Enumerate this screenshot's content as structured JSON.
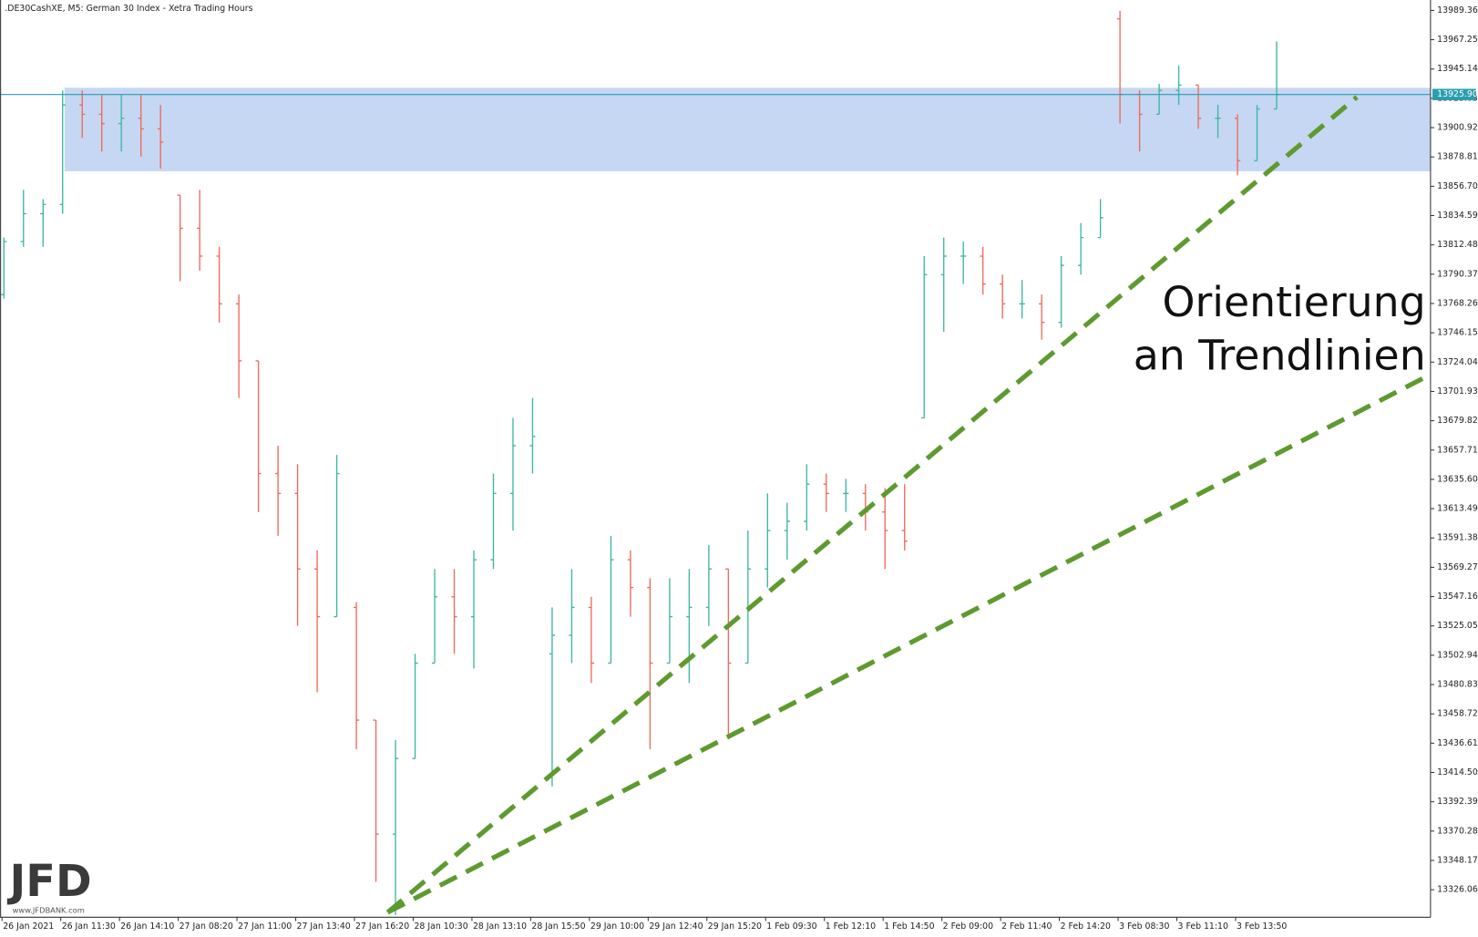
{
  "chart_data": {
    "type": "ohlc",
    "title": ".DE30CashXE, M5:  German 30 Index  - Xetra Trading Hours",
    "categories": [
      "26 Jan 2021",
      null,
      null,
      "26 Jan 11:30",
      null,
      null,
      "26 Jan 14:10",
      null,
      null,
      "27 Jan 08:20",
      null,
      null,
      "27 Jan 11:00",
      null,
      null,
      "27 Jan 13:40",
      null,
      null,
      "27 Jan 16:20",
      null,
      null,
      "28 Jan 10:30",
      null,
      null,
      "28 Jan 13:10",
      null,
      null,
      "28 Jan 15:50",
      null,
      null,
      "29 Jan 10:00",
      null,
      null,
      "29 Jan 12:40",
      null,
      null,
      "29 Jan 15:20",
      null,
      null,
      "1 Feb 09:30",
      null,
      null,
      "1 Feb 12:10",
      null,
      null,
      "1 Feb 14:50",
      null,
      null,
      "2 Feb 09:00",
      null,
      null,
      "2 Feb 11:40",
      null,
      null,
      "2 Feb 14:20",
      null,
      null,
      "3 Feb 08:30",
      null,
      null,
      "3 Feb 11:10",
      null,
      null,
      "3 Feb 13:50",
      null,
      null
    ],
    "open": [
      13775,
      13815,
      13836,
      13843,
      13918,
      13911,
      13904,
      13908,
      13900,
      13850,
      13825,
      13804,
      13768,
      13725,
      13640,
      13625,
      13568,
      13532,
      13539,
      13454,
      13368,
      13425,
      13497,
      13547,
      13532,
      13575,
      13625,
      13661,
      13504,
      13518,
      13539,
      13497,
      13575,
      13554,
      13497,
      13532,
      13539,
      13568,
      13497,
      13568,
      13597,
      13604,
      13632,
      13625,
      13625,
      13611,
      13597,
      13682,
      13790,
      13804,
      13804,
      13783,
      13768,
      13768,
      13754,
      13797,
      13818,
      13983,
      13926,
      13911,
      13929,
      13933,
      13908,
      13908,
      13876,
      13915
    ],
    "high": [
      13818,
      13854,
      13847,
      13929,
      13929,
      13926,
      13926,
      13926,
      13918,
      13850,
      13854,
      13811,
      13775,
      13725,
      13661,
      13647,
      13582,
      13654,
      13543,
      13454,
      13439,
      13504,
      13568,
      13568,
      13582,
      13640,
      13682,
      13697,
      13539,
      13568,
      13547,
      13593,
      13582,
      13561,
      13561,
      13568,
      13586,
      13568,
      13597,
      13625,
      13618,
      13647,
      13640,
      13636,
      13632,
      13629,
      13632,
      13804,
      13818,
      13815,
      13811,
      13790,
      13786,
      13775,
      13804,
      13829,
      13847,
      13989,
      13929,
      13934,
      13948,
      13933,
      13918,
      13911,
      13918,
      13966
    ],
    "low": [
      13772,
      13811,
      13811,
      13836,
      13893,
      13883,
      13883,
      13879,
      13870,
      13785,
      13793,
      13754,
      13697,
      13611,
      13593,
      13525,
      13475,
      13532,
      13432,
      13332,
      13307,
      13425,
      13497,
      13504,
      13493,
      13568,
      13597,
      13640,
      13404,
      13497,
      13482,
      13497,
      13532,
      13432,
      13497,
      13482,
      13525,
      13443,
      13497,
      13554,
      13575,
      13597,
      13611,
      13611,
      13597,
      13568,
      13582,
      13682,
      13747,
      13783,
      13775,
      13757,
      13757,
      13741,
      13750,
      13790,
      13818,
      13904,
      13883,
      13911,
      13918,
      13900,
      13893,
      13865,
      13876,
      13915
    ],
    "close": [
      13815,
      13836,
      13843,
      13918,
      13911,
      13904,
      13908,
      13900,
      13890,
      13825,
      13804,
      13768,
      13725,
      13640,
      13625,
      13568,
      13532,
      13640,
      13454,
      13368,
      13425,
      13497,
      13547,
      13532,
      13575,
      13625,
      13661,
      13668,
      13518,
      13539,
      13497,
      13575,
      13554,
      13497,
      13532,
      13539,
      13568,
      13497,
      13568,
      13597,
      13604,
      13632,
      13625,
      13625,
      13611,
      13597,
      13589,
      13790,
      13804,
      13804,
      13783,
      13768,
      13768,
      13754,
      13797,
      13818,
      13833,
      13926,
      13911,
      13929,
      13933,
      13908,
      13908,
      13876,
      13915,
      13925.9
    ],
    "up_color": "#3fb5a3",
    "down_color": "#ef6a5a",
    "ylim": [
      13305.3,
      13997.2
    ],
    "yticks": [
      13989.36,
      13967.25,
      13945.14,
      13923.03,
      13900.92,
      13878.81,
      {
        "value": 13856.7,
        "label": "13856.70"
      },
      13834.59,
      13812.48,
      13790.37,
      13768.26,
      13746.15,
      13724.04,
      13701.93,
      13679.82,
      13657.71,
      {
        "value": 13635.6,
        "label": "13635.60"
      },
      13613.49,
      13591.38,
      13569.27,
      13547.16,
      13525.05,
      13502.94,
      13480.83,
      13458.72,
      13436.61,
      {
        "value": 13414.5,
        "label": "13414.50"
      },
      13392.39,
      13370.28,
      13348.17,
      13326.06
    ],
    "current_price": 13925.9,
    "current_price_label": "13925.90",
    "current_price_color": "#2a9db0",
    "zone": [
      13868,
      13931
    ],
    "zone_color": "#c5d7f2",
    "trendlines": [
      {
        "from": [
          19.6,
          13309
        ],
        "to": [
          69.1,
          13924
        ]
      },
      {
        "from": [
          19.6,
          13309
        ],
        "to": [
          72.9,
          13715
        ]
      }
    ],
    "trendline_color": "#5e9a2f",
    "annotation": [
      "Orientierung",
      "an Trendlinien"
    ],
    "logo": "JFD",
    "logo_url": "www.JFDBANK.com"
  }
}
